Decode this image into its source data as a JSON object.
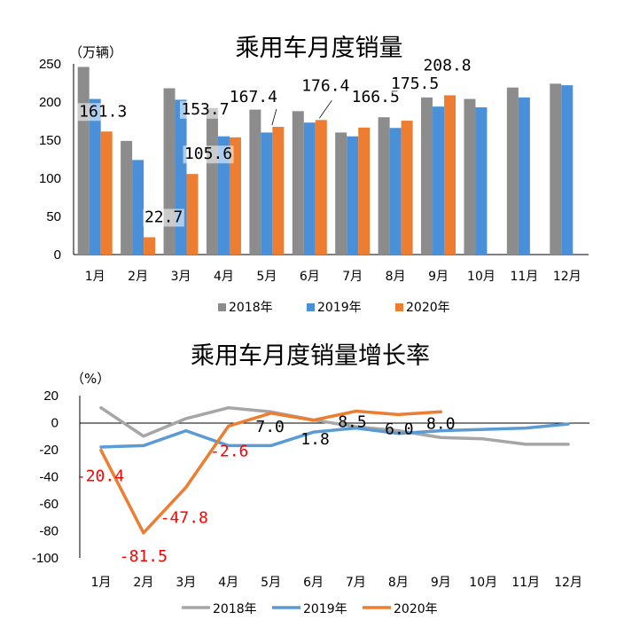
{
  "chart_data": [
    {
      "type": "bar",
      "title": "乘用车月度销量",
      "ylabel": "（万辆）",
      "ylim": [
        0,
        250
      ],
      "yticks": [
        "0",
        "50",
        "100",
        "150",
        "200",
        "250"
      ],
      "categories": [
        "1月",
        "2月",
        "3月",
        "4月",
        "5月",
        "6月",
        "7月",
        "8月",
        "9月",
        "10月",
        "11月",
        "12月"
      ],
      "series": [
        {
          "name": "2018年",
          "color": "#8c8c8c",
          "values": [
            246,
            149,
            218,
            192,
            190,
            188,
            160,
            180,
            206,
            204,
            219,
            224
          ]
        },
        {
          "name": "2019年",
          "color": "#4a90d9",
          "values": [
            204,
            124,
            203,
            155,
            160,
            173,
            155,
            166,
            194,
            193,
            206,
            222
          ]
        },
        {
          "name": "2020年",
          "color": "#ed7d31",
          "values": [
            161.3,
            22.7,
            105.6,
            153.7,
            167.4,
            176.4,
            166.5,
            175.5,
            208.8,
            null,
            null,
            null
          ]
        }
      ],
      "data_labels": [
        "161.3",
        "22.7",
        "105.6",
        "153.7",
        "167.4",
        "176.4",
        "166.5",
        "175.5",
        "208.8"
      ]
    },
    {
      "type": "line",
      "title": "乘用车月度销量增长率",
      "ylabel": "（%）",
      "ylim": [
        -100,
        20
      ],
      "yticks": [
        "20",
        "0",
        "-20",
        "-40",
        "-60",
        "-80",
        "-100"
      ],
      "categories": [
        "1月",
        "2月",
        "3月",
        "4月",
        "5月",
        "6月",
        "7月",
        "8月",
        "9月",
        "10月",
        "11月",
        "12月"
      ],
      "series": [
        {
          "name": "2018年",
          "color": "#a6a6a6",
          "values": [
            11,
            -10,
            3,
            11,
            8,
            2,
            -3,
            -6,
            -11,
            -12,
            -16,
            -16
          ]
        },
        {
          "name": "2019年",
          "color": "#5b9bd5",
          "values": [
            -18,
            -17,
            -6,
            -17,
            -17,
            -7,
            -4,
            -8,
            -6,
            -5,
            -4,
            -1
          ]
        },
        {
          "name": "2020年",
          "color": "#ed7d31",
          "values": [
            -20.4,
            -81.5,
            -47.8,
            -2.6,
            7.0,
            1.8,
            8.5,
            6.0,
            8.0,
            null,
            null,
            null
          ]
        }
      ],
      "red_labels": [
        "-20.4",
        "-81.5",
        "-47.8",
        "-2.6"
      ],
      "black_labels": [
        "7.0",
        "1.8",
        "8.5",
        "6.0",
        "8.0"
      ]
    }
  ]
}
